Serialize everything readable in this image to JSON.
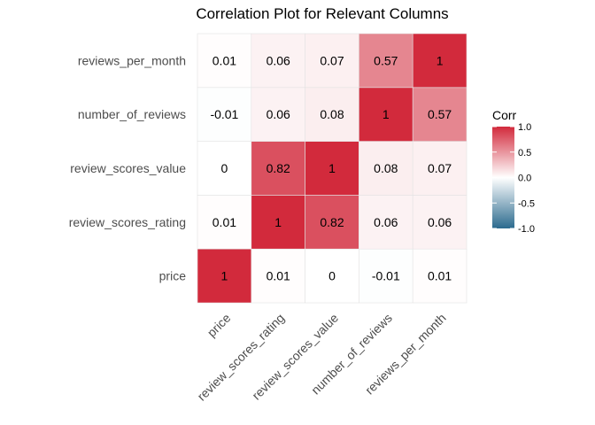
{
  "chart_data": {
    "type": "heatmap",
    "title": "Correlation Plot for Relevant Columns",
    "variables": [
      "price",
      "review_scores_rating",
      "review_scores_value",
      "number_of_reviews",
      "reviews_per_month"
    ],
    "matrix": [
      [
        1,
        0.01,
        0,
        -0.01,
        0.01
      ],
      [
        0.01,
        1,
        0.82,
        0.06,
        0.06
      ],
      [
        0,
        0.82,
        1,
        0.08,
        0.07
      ],
      [
        -0.01,
        0.06,
        0.08,
        1,
        0.57
      ],
      [
        0.01,
        0.06,
        0.07,
        0.57,
        1
      ]
    ],
    "legend": {
      "title": "Corr",
      "ticks": [
        "1.0",
        "0.5",
        "0.0",
        "-0.5",
        "-1.0"
      ],
      "range": [
        -1,
        1
      ],
      "placement": "right"
    },
    "colors": {
      "low": "#2b6a8e",
      "mid": "#ffffff",
      "high": "#d22a3c"
    },
    "grid": true
  }
}
